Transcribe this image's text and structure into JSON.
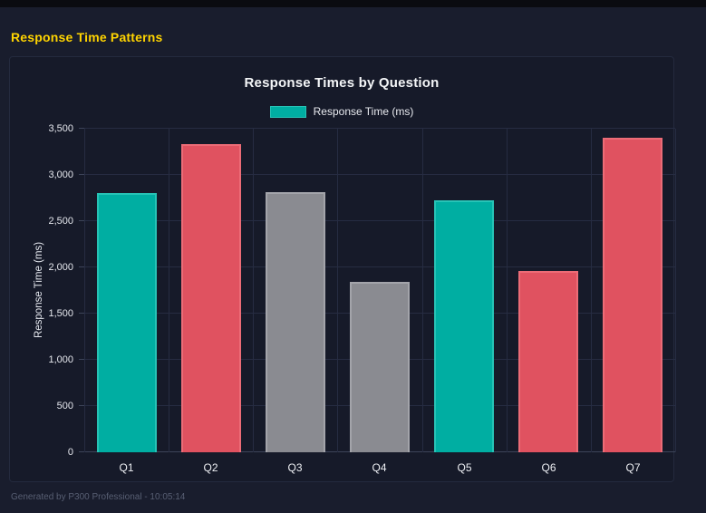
{
  "page": {
    "heading": "Response Time Patterns",
    "footer": "Generated by P300 Professional - 10:05:14"
  },
  "colors": {
    "heading_accent": "#FFD400",
    "page_background": "#191d2d",
    "panel_background": "#161a29",
    "gridline": "#262c42"
  },
  "chart_data": {
    "type": "bar",
    "title": "Response Times by Question",
    "categories": [
      "Q1",
      "Q2",
      "Q3",
      "Q4",
      "Q5",
      "Q6",
      "Q7"
    ],
    "series": [
      {
        "name": "Response Time (ms)",
        "values": [
          2800,
          3330,
          2810,
          1840,
          2730,
          1960,
          3400
        ]
      }
    ],
    "bar_colors": [
      "#00AEA2",
      "#E05260",
      "#8A8B91",
      "#8A8B91",
      "#00AEA2",
      "#E05260",
      "#E05260"
    ],
    "bar_border_colors": [
      "#27C3B6",
      "#EC6C77",
      "#A3A4AA",
      "#A3A4AA",
      "#27C3B6",
      "#EC6C77",
      "#EC6C77"
    ],
    "xlabel": "",
    "ylabel": "Response Time (ms)",
    "ylim": [
      0,
      3500
    ],
    "ytick_step": 500,
    "grid": true,
    "legend_position": "top"
  }
}
